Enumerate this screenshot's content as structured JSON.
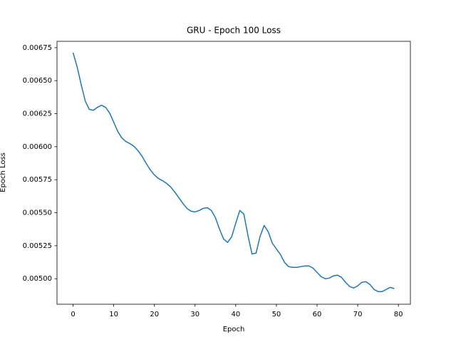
{
  "chart_data": {
    "type": "line",
    "title": "GRU - Epoch 100 Loss",
    "x_label": "Epoch",
    "y_label": "Epoch Loss",
    "x": [
      0,
      1,
      2,
      3,
      4,
      5,
      6,
      7,
      8,
      9,
      10,
      11,
      12,
      13,
      14,
      15,
      16,
      17,
      18,
      19,
      20,
      21,
      22,
      23,
      24,
      25,
      26,
      27,
      28,
      29,
      30,
      31,
      32,
      33,
      34,
      35,
      36,
      37,
      38,
      39,
      40,
      41,
      42,
      43,
      44,
      45,
      46,
      47,
      48,
      49,
      50,
      51,
      52,
      53,
      54,
      55,
      56,
      57,
      58,
      59,
      60,
      61,
      62,
      63,
      64,
      65,
      66,
      67,
      68,
      69,
      70,
      71,
      72,
      73,
      74,
      75,
      76,
      77,
      78,
      79
    ],
    "series": [
      {
        "name": "Epoch Loss",
        "color": "#1f77b4",
        "values": [
          0.006712,
          0.006605,
          0.00647,
          0.006346,
          0.006282,
          0.006276,
          0.006298,
          0.006314,
          0.006298,
          0.006255,
          0.006185,
          0.006115,
          0.006066,
          0.006039,
          0.006023,
          0.006002,
          0.005969,
          0.005926,
          0.005872,
          0.005824,
          0.005786,
          0.005759,
          0.005743,
          0.005722,
          0.005695,
          0.005657,
          0.005614,
          0.005571,
          0.005533,
          0.005512,
          0.005506,
          0.005517,
          0.005533,
          0.005538,
          0.005517,
          0.005463,
          0.005377,
          0.005302,
          0.005275,
          0.005318,
          0.00542,
          0.005517,
          0.00549,
          0.005328,
          0.005188,
          0.005194,
          0.005323,
          0.005404,
          0.005355,
          0.005269,
          0.005226,
          0.005183,
          0.005124,
          0.005092,
          0.005086,
          0.005086,
          0.005092,
          0.005097,
          0.005097,
          0.005081,
          0.005048,
          0.005016,
          0.005,
          0.005005,
          0.005022,
          0.005027,
          0.005011,
          0.004973,
          0.004941,
          0.00493,
          0.004946,
          0.004973,
          0.004978,
          0.004957,
          0.004919,
          0.004903,
          0.004903,
          0.004919,
          0.004935,
          0.004925
        ]
      }
    ],
    "xlim": [
      -3.95,
      82.95
    ],
    "xticks": [
      0,
      10,
      20,
      30,
      40,
      50,
      60,
      70,
      80
    ],
    "ylim": [
      0.004807,
      0.006798
    ],
    "yticks": [
      {
        "value": 0.005,
        "label": "0.00500"
      },
      0.00525,
      {
        "value": 0.0055,
        "label": "0.00550"
      },
      0.00575,
      {
        "value": 0.006,
        "label": "0.00600"
      },
      0.00625,
      {
        "value": 0.0065,
        "label": "0.00650"
      },
      0.00675
    ],
    "grid": false
  }
}
